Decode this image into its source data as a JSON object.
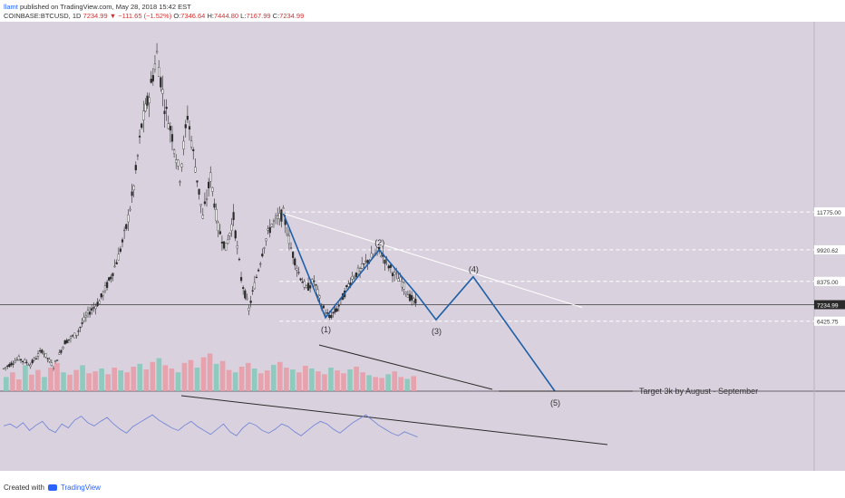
{
  "header": {
    "user": "llamt",
    "published_text": "published on TradingView.com, May 28, 2018 15:42 EST",
    "symbol": "COINBASE:BTCUSD, 1D",
    "last": "7234.99",
    "change": "−111.65 (−1.52%)",
    "o_label": "O:",
    "o_value": "7346.64",
    "h_label": "H:",
    "h_value": "7444.80",
    "l_label": "L:",
    "l_value": "7167.99",
    "c_label": "C:",
    "c_value": "7234.99"
  },
  "footer": {
    "created_with": "Created with",
    "brand": "TradingView"
  },
  "colors": {
    "background": "#d9d2de",
    "candle": "#2b2b2b",
    "wave": "#1f5fa8",
    "vol_up": "#80c9b7",
    "vol_down": "#e89aa5",
    "rsi": "#6c7fd6",
    "dashed_levels": "#ffffff"
  },
  "chart_data": {
    "type": "candlestick",
    "symbol": "COINBASE:BTCUSD",
    "interval": "1D",
    "ylim": [
      3000,
      21000
    ],
    "price_levels": [
      {
        "label": "11775.00",
        "value": 11775,
        "style": "dashed"
      },
      {
        "label": "9920.62",
        "value": 9920.62,
        "style": "dashed"
      },
      {
        "label": "8375.00",
        "value": 8375,
        "style": "dashed"
      },
      {
        "label": "7234.99",
        "value": 7234.99,
        "style": "current"
      },
      {
        "label": "6425.75",
        "value": 6425.75,
        "style": "dashed"
      }
    ],
    "price_path": [
      [
        0,
        4100
      ],
      [
        8,
        4600
      ],
      [
        14,
        4300
      ],
      [
        20,
        5000
      ],
      [
        26,
        4200
      ],
      [
        32,
        5400
      ],
      [
        38,
        5800
      ],
      [
        44,
        6800
      ],
      [
        50,
        7400
      ],
      [
        56,
        8600
      ],
      [
        60,
        9600
      ],
      [
        64,
        11000
      ],
      [
        68,
        13000
      ],
      [
        72,
        16000
      ],
      [
        76,
        17500
      ],
      [
        80,
        19500
      ],
      [
        84,
        17000
      ],
      [
        88,
        15500
      ],
      [
        92,
        13500
      ],
      [
        96,
        16500
      ],
      [
        100,
        14000
      ],
      [
        104,
        11500
      ],
      [
        108,
        13500
      ],
      [
        112,
        11000
      ],
      [
        116,
        10000
      ],
      [
        120,
        11500
      ],
      [
        124,
        8500
      ],
      [
        128,
        7000
      ],
      [
        132,
        8600
      ],
      [
        136,
        10200
      ],
      [
        140,
        11200
      ],
      [
        144,
        11500
      ],
      [
        146,
        11700
      ],
      [
        150,
        10000
      ],
      [
        154,
        8800
      ],
      [
        158,
        8000
      ],
      [
        162,
        8400
      ],
      [
        166,
        7200
      ],
      [
        170,
        6600
      ],
      [
        174,
        7000
      ],
      [
        178,
        7800
      ],
      [
        182,
        8600
      ],
      [
        186,
        8900
      ],
      [
        190,
        9400
      ],
      [
        194,
        9700
      ],
      [
        196,
        9900
      ],
      [
        200,
        9300
      ],
      [
        204,
        8700
      ],
      [
        208,
        8300
      ],
      [
        212,
        7600
      ],
      [
        216,
        7235
      ]
    ],
    "wave_count": {
      "points": [
        {
          "label": "",
          "x": 146,
          "y": 11700
        },
        {
          "label": "(1)",
          "x": 168,
          "y": 6600
        },
        {
          "label": "(2)",
          "x": 196,
          "y": 9920
        },
        {
          "label": "",
          "x": 216,
          "y": 7700
        },
        {
          "label": "(3)",
          "x": 226,
          "y": 6500
        },
        {
          "label": "(4)",
          "x": 246,
          "y": 8600
        },
        {
          "label": "(5)",
          "x": 290,
          "y": 3000
        }
      ]
    },
    "annotations": [
      {
        "text": "Target 3k by August - September",
        "x": 300,
        "y": 3000
      }
    ],
    "volume": {
      "ylim": [
        0,
        100
      ],
      "values": [
        30,
        40,
        25,
        55,
        35,
        45,
        30,
        50,
        60,
        40,
        35,
        45,
        55,
        38,
        42,
        48,
        36,
        50,
        44,
        40,
        52,
        58,
        46,
        62,
        70,
        55,
        48,
        40,
        60,
        66,
        50,
        72,
        80,
        58,
        64,
        45,
        40,
        52,
        60,
        48,
        38,
        44,
        56,
        62,
        50,
        46,
        40,
        54,
        48,
        42,
        36,
        50,
        44,
        38,
        46,
        52,
        40,
        34,
        30,
        28,
        36,
        42,
        30,
        26,
        32
      ]
    },
    "rsi": {
      "ylim": [
        0,
        100
      ],
      "values": [
        55,
        58,
        52,
        60,
        48,
        56,
        62,
        50,
        45,
        58,
        52,
        64,
        70,
        60,
        55,
        62,
        68,
        58,
        50,
        44,
        54,
        60,
        66,
        72,
        64,
        58,
        52,
        48,
        56,
        62,
        54,
        48,
        42,
        50,
        58,
        46,
        40,
        52,
        60,
        56,
        48,
        44,
        50,
        58,
        54,
        46,
        40,
        48,
        56,
        62,
        58,
        50,
        44,
        52,
        60,
        66,
        72,
        64,
        56,
        50,
        44,
        40,
        46,
        42,
        38
      ]
    }
  }
}
